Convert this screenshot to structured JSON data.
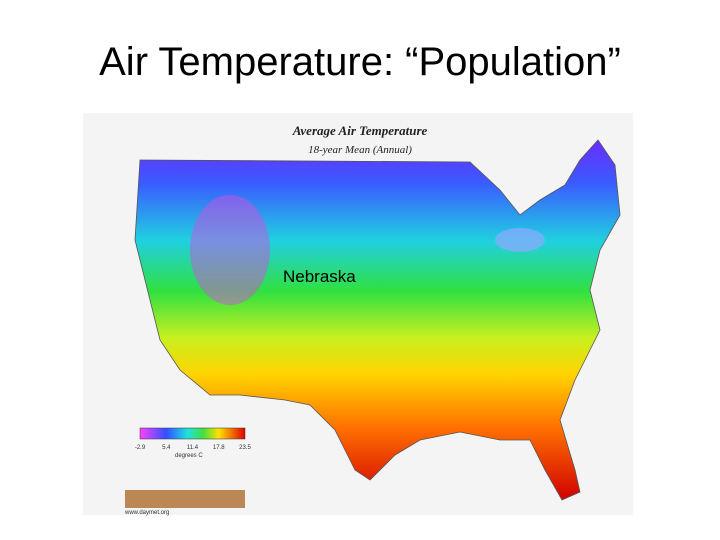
{
  "slide": {
    "title": "Air Temperature: “Population”"
  },
  "map": {
    "title": "Average Air Temperature",
    "subtitle": "18-year Mean (Annual)",
    "label": "Nebraska",
    "legend": {
      "ticks": [
        "-2.9",
        "5.4",
        "11.4",
        "17.8",
        "23.5"
      ],
      "unit": "degrees C"
    },
    "credit": "www.daymet.org"
  }
}
